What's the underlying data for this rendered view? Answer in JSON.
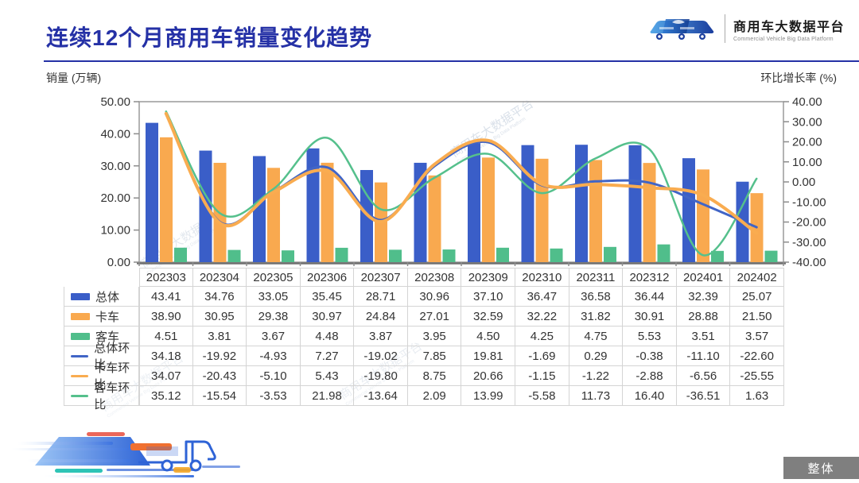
{
  "header": {
    "title": "连续12个月商用车销量变化趋势",
    "logo": {
      "brand_cn": "商用车大数据平台",
      "brand_en": "Commercial Vehicle Big Data Platform"
    }
  },
  "axes": {
    "left_label": "销量 (万辆)",
    "right_label": "环比增长率 (%)"
  },
  "footer": {
    "overall_button": "整体"
  },
  "watermark": {
    "text": "商用车大数据平台",
    "subtext": "Commercial Vehicle Big Data Platform"
  },
  "colors": {
    "title_blue": "#2531A6",
    "bar_total": "#3A5EC8",
    "bar_truck": "#F9A94F",
    "bar_bus": "#50BE8B",
    "line_total": "#4165C6",
    "line_truck": "#F9AC50",
    "line_bus": "#55C08C",
    "axis_gray": "#8c8c8c",
    "button_gray": "#7F7F7F"
  },
  "chart_data": {
    "type": "bar+line",
    "title": "连续12个月商用车销量变化趋势",
    "categories": [
      "202303",
      "202304",
      "202305",
      "202306",
      "202307",
      "202308",
      "202309",
      "202310",
      "202311",
      "202312",
      "202401",
      "202402"
    ],
    "left_axis": {
      "label": "销量 (万辆)",
      "min": 0,
      "max": 50,
      "tick_step": 10
    },
    "right_axis": {
      "label": "环比增长率 (%)",
      "min": -40,
      "max": 40,
      "tick_step": 10
    },
    "grid": false,
    "legend_position": "table-left",
    "bar_series": [
      {
        "name": "总体",
        "color_key": "bar_total",
        "values": [
          "43.41",
          "34.76",
          "33.05",
          "35.45",
          "28.71",
          "30.96",
          "37.10",
          "36.47",
          "36.58",
          "36.44",
          "32.39",
          "25.07"
        ]
      },
      {
        "name": "卡车",
        "color_key": "bar_truck",
        "values": [
          "38.90",
          "30.95",
          "29.38",
          "30.97",
          "24.84",
          "27.01",
          "32.59",
          "32.22",
          "31.82",
          "30.91",
          "28.88",
          "21.50"
        ]
      },
      {
        "name": "客车",
        "color_key": "bar_bus",
        "values": [
          "4.51",
          "3.81",
          "3.67",
          "4.48",
          "3.87",
          "3.95",
          "4.50",
          "4.25",
          "4.75",
          "5.53",
          "3.51",
          "3.57"
        ]
      }
    ],
    "line_series": [
      {
        "name": "总体环比",
        "color_key": "line_total",
        "width": 3,
        "values": [
          "34.18",
          "-19.92",
          "-4.93",
          "7.27",
          "-19.02",
          "7.85",
          "19.81",
          "-1.69",
          "0.29",
          "-0.38",
          "-11.10",
          "-22.60"
        ]
      },
      {
        "name": "卡车环比",
        "color_key": "line_truck",
        "width": 4,
        "values": [
          "34.07",
          "-20.43",
          "-5.10",
          "5.43",
          "-19.80",
          "8.75",
          "20.66",
          "-1.15",
          "-1.22",
          "-2.88",
          "-6.56",
          "-25.55"
        ]
      },
      {
        "name": "客车环比",
        "color_key": "line_bus",
        "width": 2.5,
        "values": [
          "35.12",
          "-15.54",
          "-3.53",
          "21.98",
          "-13.64",
          "2.09",
          "13.99",
          "-5.58",
          "11.73",
          "16.40",
          "-36.51",
          "1.63"
        ]
      }
    ]
  }
}
